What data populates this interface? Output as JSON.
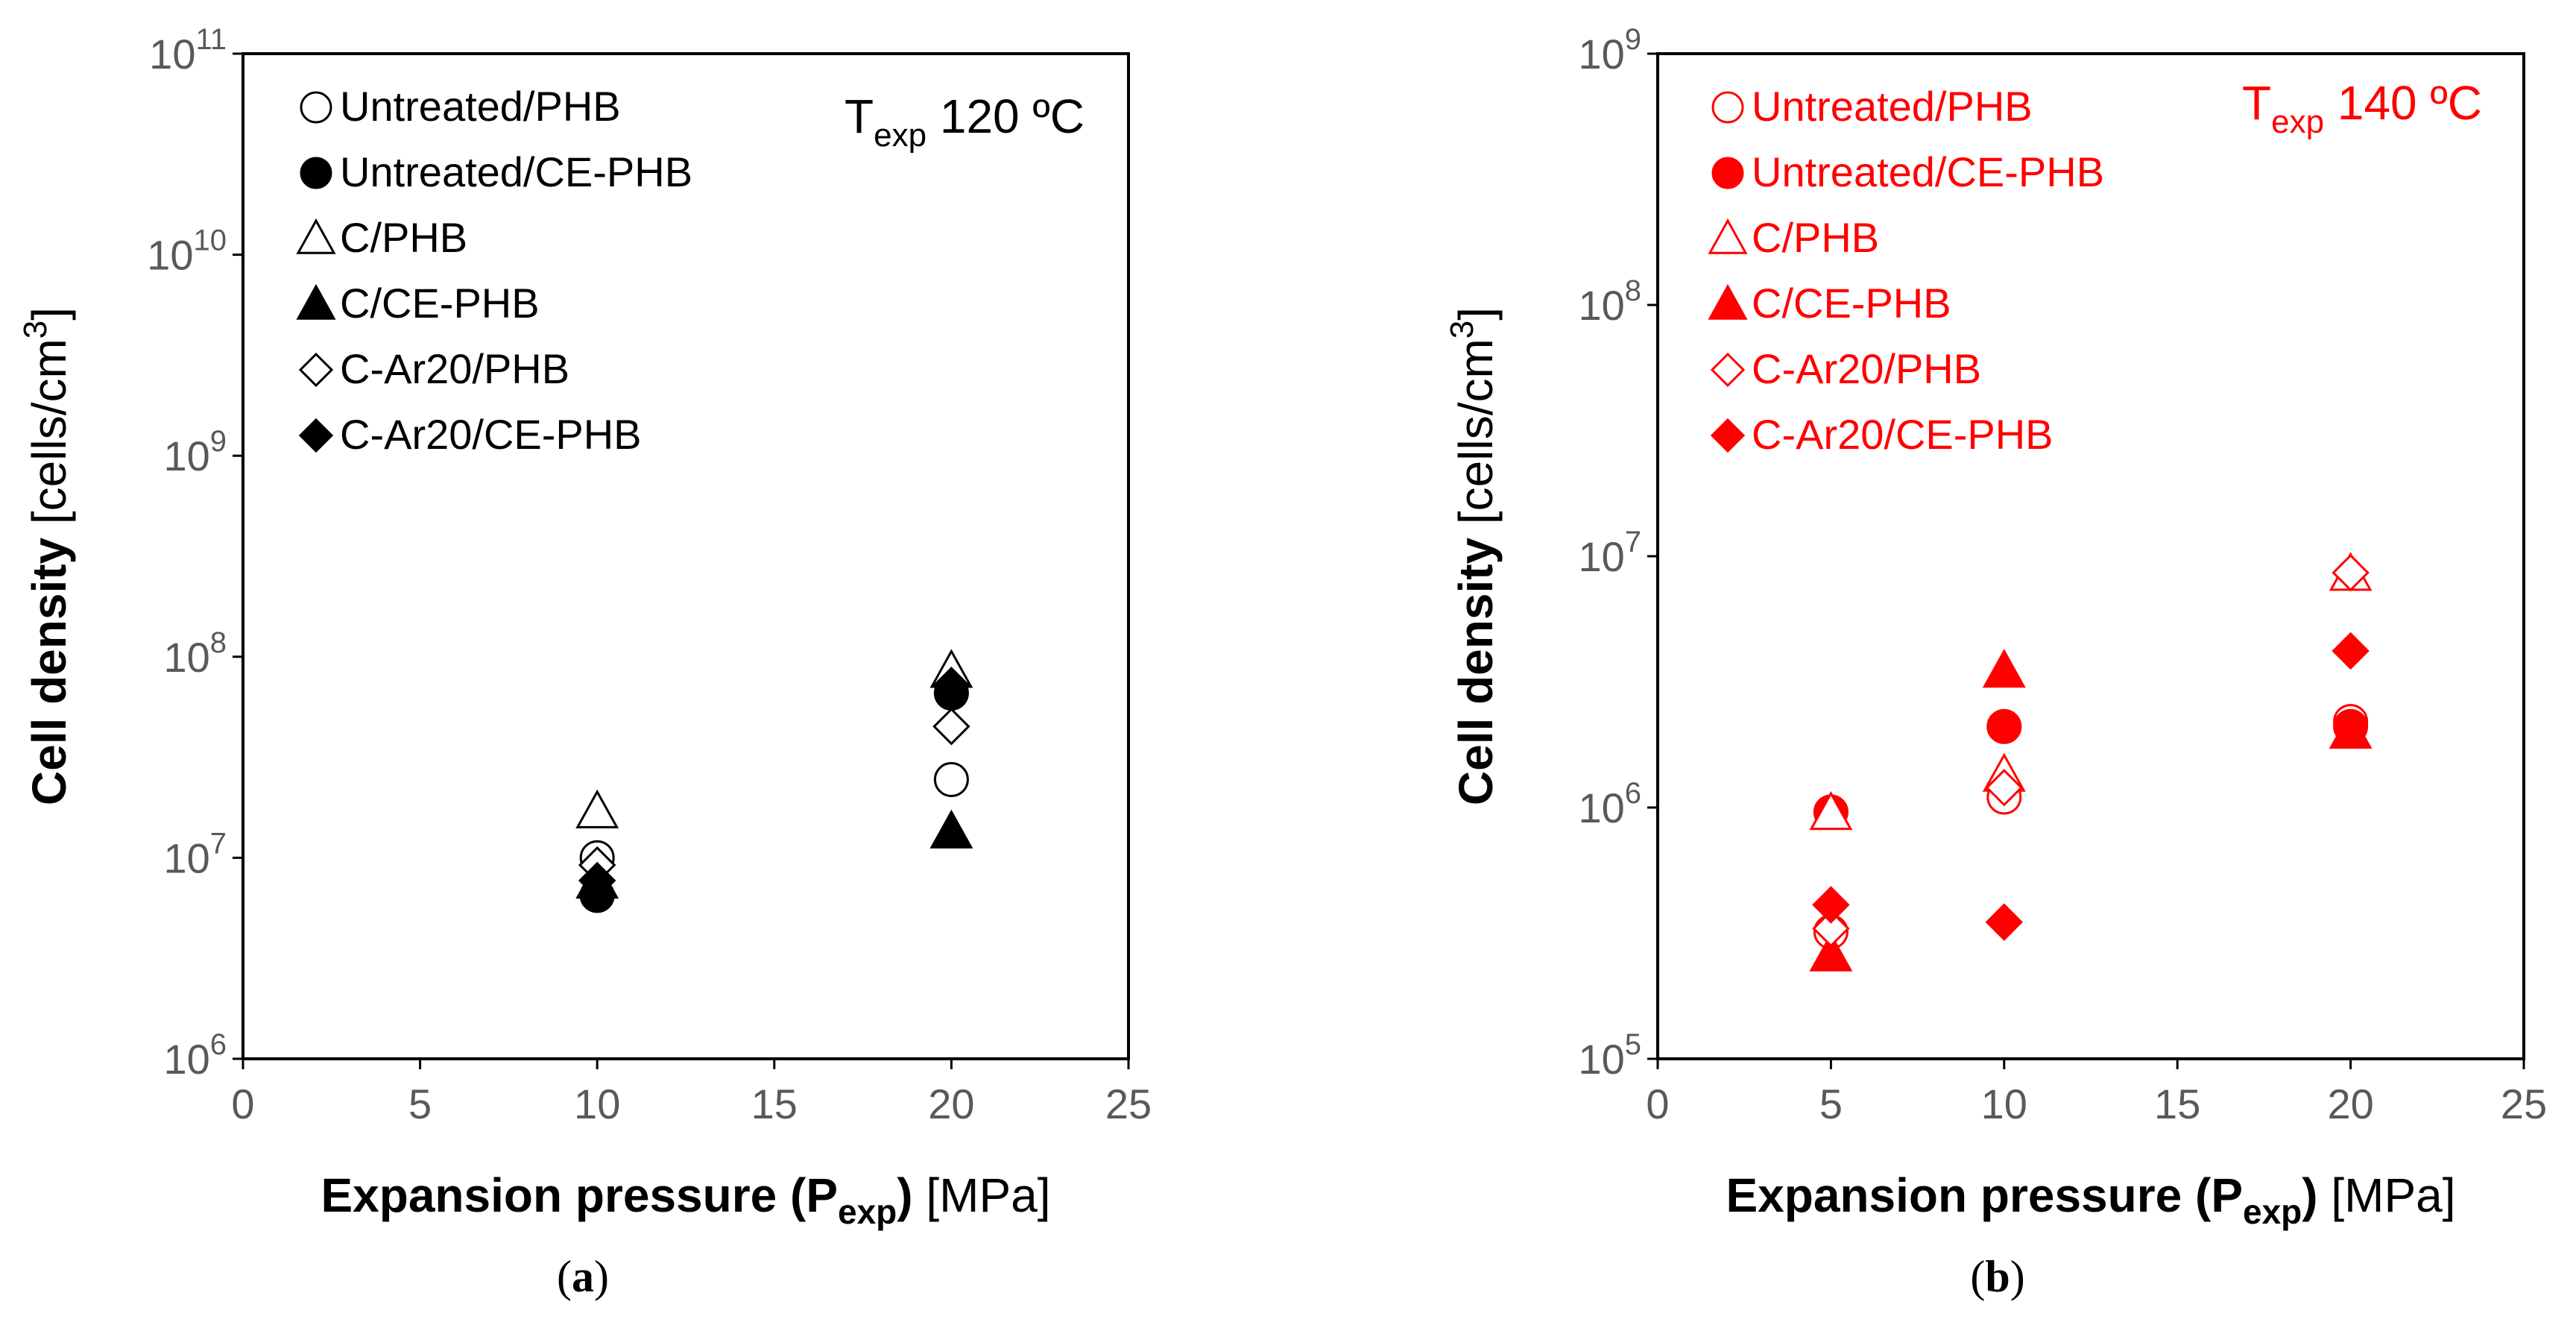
{
  "chart_data": [
    {
      "type": "scatter",
      "panel": "a",
      "subcaption": "(a)",
      "color": "#000000",
      "temperature_label": {
        "main": "T",
        "sub": "exp",
        "value": " 120 ºC"
      },
      "ylabel_bold": "Cell density",
      "ylabel_unit": " [cells/cm",
      "ylabel_sup": "3",
      "ylabel_close": "]",
      "xlabel_bold": "Expansion pressure (P",
      "xlabel_sub": "exp",
      "xlabel_bold_close": ")",
      "xlabel_unit": " [MPa]",
      "xlim": [
        0,
        25
      ],
      "xticks": [
        "0",
        "5",
        "10",
        "15",
        "20",
        "25"
      ],
      "ylog_range": [
        6,
        11
      ],
      "ytick_exponents": [
        "6",
        "7",
        "8",
        "9",
        "10",
        "11"
      ],
      "ytick_base": "10",
      "legend": [
        {
          "label": "Untreated/PHB",
          "marker": "circle",
          "filled": false
        },
        {
          "label": "Untreated/CE-PHB",
          "marker": "circle",
          "filled": true
        },
        {
          "label": "C/PHB",
          "marker": "triangle",
          "filled": false
        },
        {
          "label": "C/CE-PHB",
          "marker": "triangle",
          "filled": true
        },
        {
          "label": "C-Ar20/PHB",
          "marker": "diamond",
          "filled": false
        },
        {
          "label": "C-Ar20/CE-PHB",
          "marker": "diamond",
          "filled": true
        }
      ],
      "series": [
        {
          "name": "Untreated/PHB",
          "x": [
            10,
            20
          ],
          "y": [
            10000000,
            24500000
          ]
        },
        {
          "name": "Untreated/CE-PHB",
          "x": [
            10,
            20
          ],
          "y": [
            6500000,
            66000000
          ]
        },
        {
          "name": "C/PHB",
          "x": [
            10,
            20
          ],
          "y": [
            17000000,
            85000000
          ]
        },
        {
          "name": "C/CE-PHB",
          "x": [
            10,
            20
          ],
          "y": [
            7600000,
            13500000
          ]
        },
        {
          "name": "C-Ar20/PHB",
          "x": [
            10,
            20
          ],
          "y": [
            9200000,
            45000000
          ]
        },
        {
          "name": "C-Ar20/CE-PHB",
          "x": [
            10,
            20
          ],
          "y": [
            7700000,
            72000000
          ]
        }
      ]
    },
    {
      "type": "scatter",
      "panel": "b",
      "subcaption": "(b)",
      "color": "#ff0000",
      "temperature_label": {
        "main": "T",
        "sub": "exp",
        "value": " 140 ºC"
      },
      "ylabel_bold": "Cell density",
      "ylabel_unit": " [cells/cm",
      "ylabel_sup": "3",
      "ylabel_close": "]",
      "xlabel_bold": "Expansion pressure (P",
      "xlabel_sub": "exp",
      "xlabel_bold_close": ")",
      "xlabel_unit": " [MPa]",
      "xlim": [
        0,
        25
      ],
      "xticks": [
        "0",
        "5",
        "10",
        "15",
        "20",
        "25"
      ],
      "ylog_range": [
        5,
        9
      ],
      "ytick_exponents": [
        "5",
        "6",
        "7",
        "8",
        "9"
      ],
      "ytick_base": "10",
      "legend": [
        {
          "label": "Untreated/PHB",
          "marker": "circle",
          "filled": false
        },
        {
          "label": "Untreated/CE-PHB",
          "marker": "circle",
          "filled": true
        },
        {
          "label": "C/PHB",
          "marker": "triangle",
          "filled": false
        },
        {
          "label": "C/CE-PHB",
          "marker": "triangle",
          "filled": true
        },
        {
          "label": "C-Ar20/PHB",
          "marker": "diamond",
          "filled": false
        },
        {
          "label": "C-Ar20/CE-PHB",
          "marker": "diamond",
          "filled": true
        }
      ],
      "series": [
        {
          "name": "Untreated/PHB",
          "x": [
            5,
            10,
            20
          ],
          "y": [
            320000,
            1100000,
            2200000
          ]
        },
        {
          "name": "Untreated/CE-PHB",
          "x": [
            5,
            10,
            20
          ],
          "y": [
            960000,
            2100000,
            2100000
          ]
        },
        {
          "name": "C/PHB",
          "x": [
            5,
            10,
            20
          ],
          "y": [
            950000,
            1350000,
            8500000
          ]
        },
        {
          "name": "C/CE-PHB",
          "x": [
            5,
            10,
            20
          ],
          "y": [
            260000,
            3500000,
            2000000
          ]
        },
        {
          "name": "C-Ar20/PHB",
          "x": [
            5,
            10,
            20
          ],
          "y": [
            330000,
            1200000,
            8600000
          ]
        },
        {
          "name": "C-Ar20/CE-PHB",
          "x": [
            5,
            10,
            20
          ],
          "y": [
            410000,
            350000,
            4200000
          ]
        }
      ]
    }
  ]
}
